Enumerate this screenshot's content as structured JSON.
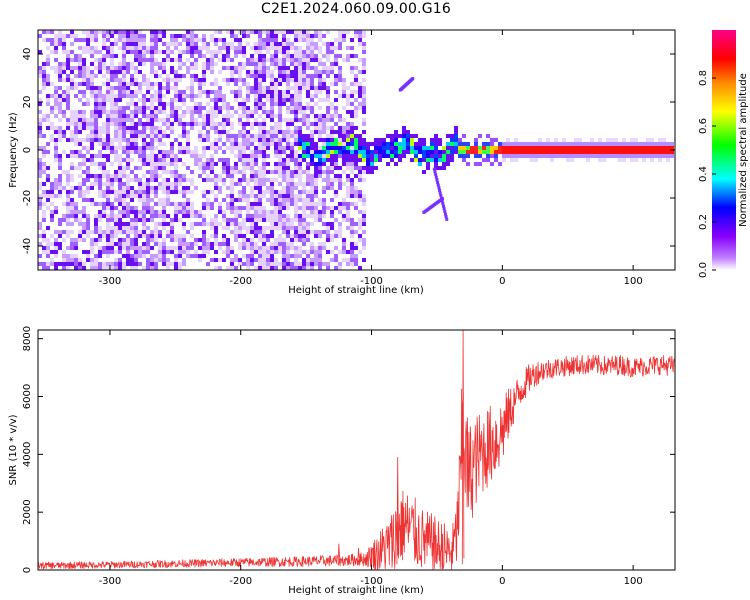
{
  "title": "C2E1.2024.060.09.00.G16",
  "chart_data": [
    {
      "type": "heatmap",
      "xlabel": "Height of straight line (km)",
      "ylabel": "Frequency (Hz)",
      "xlim": [
        -355,
        132
      ],
      "ylim": [
        -50,
        50
      ],
      "x_ticks": [
        -300,
        -200,
        -100,
        0,
        100
      ],
      "x_tick_labels": [
        "-300",
        "-200",
        "-100",
        "0",
        "100"
      ],
      "y_ticks": [
        -40,
        -20,
        0,
        20,
        40
      ],
      "y_tick_labels": [
        "-40",
        "-20",
        "0",
        "20",
        "40"
      ],
      "colorbar": {
        "label": "Normalized spectral amplitude",
        "range": [
          0,
          1
        ],
        "ticks": [
          0.0,
          0.2,
          0.4,
          0.6,
          0.8
        ],
        "tick_labels": [
          "0.0",
          "0.2",
          "0.4",
          "0.6",
          "0.8"
        ],
        "colors": [
          "#ffffff",
          "#8800ff",
          "#0000ff",
          "#00ffff",
          "#00ff00",
          "#ffff00",
          "#ff8800",
          "#ff0000",
          "#ff0088"
        ]
      },
      "regions": [
        {
          "x": [
            -355,
            -105
          ],
          "freq": [
            -50,
            50
          ],
          "amplitude": 0.12,
          "pattern": "broadband noise"
        },
        {
          "x": [
            -155,
            -35
          ],
          "freq": [
            -6,
            6
          ],
          "amplitude": 0.45,
          "pattern": "noisy tone"
        },
        {
          "x": [
            -35,
            0
          ],
          "freq": [
            -2,
            2
          ],
          "amplitude": 0.75,
          "pattern": "tone"
        },
        {
          "x": [
            0,
            132
          ],
          "freq": [
            -1.5,
            1.5
          ],
          "amplitude": 0.9,
          "pattern": "steady tone"
        }
      ]
    },
    {
      "type": "line",
      "xlabel": "Height of straight line (km)",
      "ylabel": "SNR (10 * v/v)",
      "xlim": [
        -355,
        132
      ],
      "ylim": [
        0,
        8300
      ],
      "x_ticks": [
        -300,
        -200,
        -100,
        0,
        100
      ],
      "x_tick_labels": [
        "-300",
        "-200",
        "-100",
        "0",
        "100"
      ],
      "y_ticks": [
        0,
        2000,
        4000,
        6000,
        8000
      ],
      "y_tick_labels": [
        "0",
        "2000",
        "4000",
        "6000",
        "8000"
      ],
      "series": [
        {
          "color": "#ee3333",
          "x": [
            -355,
            -300,
            -250,
            -200,
            -150,
            -120,
            -105,
            -95,
            -85,
            -80,
            -75,
            -70,
            -65,
            -60,
            -55,
            -50,
            -45,
            -40,
            -38,
            -35,
            -32,
            -30,
            -28,
            -26,
            -24,
            -20,
            -15,
            -10,
            -5,
            0,
            5,
            10,
            15,
            20,
            25,
            30,
            40,
            50,
            60,
            70,
            80,
            90,
            100,
            110,
            120,
            132
          ],
          "y": [
            150,
            180,
            220,
            260,
            300,
            330,
            380,
            600,
            900,
            1300,
            1600,
            1400,
            1200,
            1000,
            900,
            800,
            700,
            600,
            700,
            1200,
            3000,
            5500,
            3800,
            3200,
            3400,
            3800,
            4100,
            4300,
            4500,
            4800,
            5400,
            5900,
            6300,
            6600,
            6800,
            6900,
            7000,
            7050,
            7100,
            7100,
            7050,
            7100,
            7000,
            7050,
            7100,
            7050
          ],
          "spread": [
            120,
            120,
            130,
            150,
            180,
            200,
            250,
            700,
            1100,
            1400,
            1300,
            1300,
            1200,
            1100,
            1100,
            1000,
            1000,
            900,
            900,
            1200,
            2000,
            2500,
            2200,
            2000,
            1800,
            1600,
            1500,
            1400,
            1400,
            1200,
            900,
            700,
            600,
            500,
            450,
            400,
            350,
            350,
            350,
            350,
            350,
            350,
            350,
            350,
            350,
            350
          ],
          "peaks": [
            {
              "x": -30,
              "y": 8300
            },
            {
              "x": -80,
              "y": 3900
            },
            {
              "x": -125,
              "y": 900
            },
            {
              "x": -110,
              "y": 750
            }
          ]
        }
      ]
    }
  ]
}
